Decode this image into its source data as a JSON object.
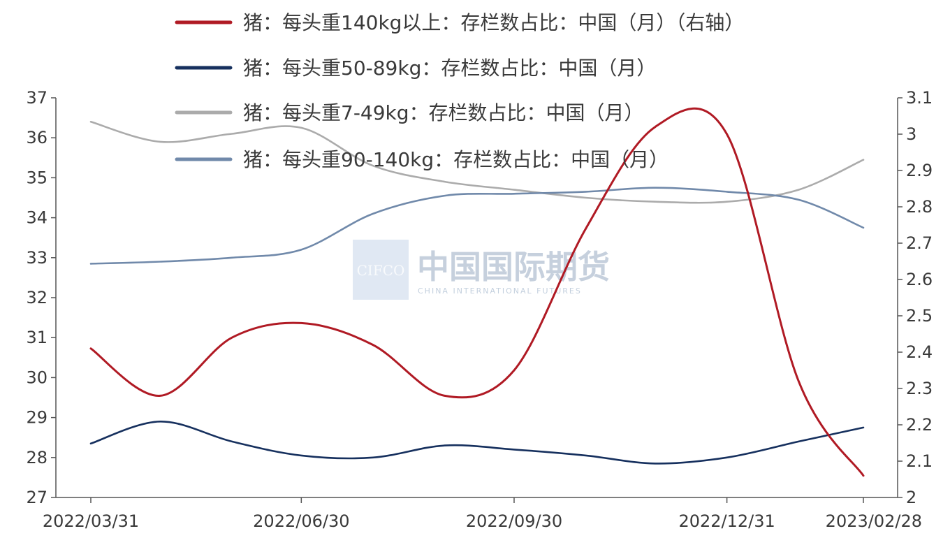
{
  "chart_data": {
    "type": "line",
    "title": "",
    "x_ticks": [
      "2022/03/31",
      "2022/06/30",
      "2022/09/30",
      "2022/12/31",
      "2023/02/28"
    ],
    "y_left": {
      "range": [
        27,
        37
      ],
      "ticks": [
        "27",
        "28",
        "29",
        "30",
        "31",
        "32",
        "33",
        "34",
        "35",
        "36",
        "37"
      ]
    },
    "y_right": {
      "range": [
        2,
        3.1
      ],
      "ticks": [
        "2",
        "2.1",
        "2.2",
        "2.3",
        "2.4",
        "2.5",
        "2.6",
        "2.7",
        "2.8",
        "2.9",
        "3",
        "3.1"
      ]
    },
    "grid": false,
    "legend_position": "top",
    "series": [
      {
        "name": "猪：每头重140kg以上：存栏数占比：中国（月）（右轴）",
        "axis": "right",
        "color": "#b01a24",
        "x": [
          "2022/03/31",
          "2022/04/30",
          "2022/05/31",
          "2022/06/30",
          "2022/07/31",
          "2022/08/31",
          "2022/09/30",
          "2022/10/31",
          "2022/11/30",
          "2022/12/31",
          "2023/01/31",
          "2023/02/28"
        ],
        "y": [
          2.41,
          2.28,
          2.44,
          2.48,
          2.42,
          2.28,
          2.35,
          2.74,
          3.02,
          3.0,
          2.32,
          2.06
        ]
      },
      {
        "name": "猪：每头重50-89kg：存栏数占比：中国（月）",
        "axis": "left",
        "color": "#16305e",
        "x": [
          "2022/03/31",
          "2022/04/30",
          "2022/05/31",
          "2022/06/30",
          "2022/07/31",
          "2022/08/31",
          "2022/09/30",
          "2022/10/31",
          "2022/11/30",
          "2022/12/31",
          "2023/01/31",
          "2023/02/28"
        ],
        "y": [
          28.35,
          28.9,
          28.4,
          28.05,
          28.0,
          28.3,
          28.2,
          28.05,
          27.85,
          28.0,
          28.4,
          28.75
        ]
      },
      {
        "name": "猪：每头重7-49kg：存栏数占比：中国（月）",
        "axis": "left",
        "color": "#ababab",
        "x": [
          "2022/03/31",
          "2022/04/30",
          "2022/05/31",
          "2022/06/30",
          "2022/07/31",
          "2022/08/31",
          "2022/09/30",
          "2022/10/31",
          "2022/11/30",
          "2022/12/31",
          "2023/01/31",
          "2023/02/28"
        ],
        "y": [
          36.4,
          35.9,
          36.1,
          36.25,
          35.3,
          34.9,
          34.7,
          34.5,
          34.4,
          34.4,
          34.7,
          35.45
        ]
      },
      {
        "name": "猪：每头重90-140kg：存栏数占比：中国（月）",
        "axis": "left",
        "color": "#7089aa",
        "x": [
          "2022/03/31",
          "2022/04/30",
          "2022/05/31",
          "2022/06/30",
          "2022/07/31",
          "2022/08/31",
          "2022/09/30",
          "2022/10/31",
          "2022/11/30",
          "2022/12/31",
          "2023/01/31",
          "2023/02/28"
        ],
        "y": [
          32.85,
          32.9,
          33.0,
          33.2,
          34.1,
          34.55,
          34.6,
          34.65,
          34.75,
          34.65,
          34.45,
          33.75
        ]
      }
    ]
  },
  "watermark": {
    "logo_text": "CIFCO",
    "name": "中国国际期货",
    "subtitle": "CHINA INTERNATIONAL FUTURES"
  }
}
